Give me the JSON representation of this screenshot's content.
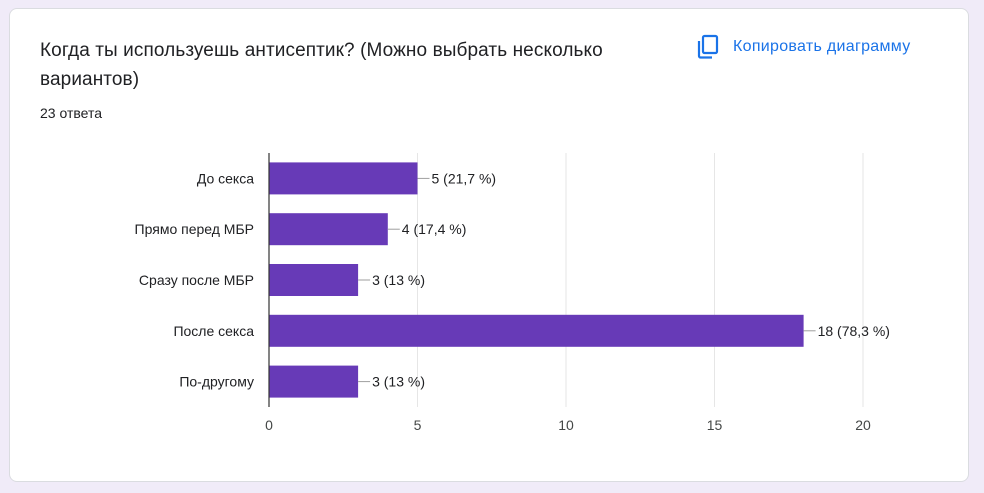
{
  "question": {
    "title": "Когда ты используешь антисептик? (Можно выбрать несколько вариантов)",
    "response_count": "23 ответа"
  },
  "actions": {
    "copy_label": "Копировать диаграмму",
    "copy_icon": "copy-icon"
  },
  "colors": {
    "bar": "#673ab7",
    "accent": "#1a73e8",
    "page_bg": "#f0ebf8"
  },
  "chart_data": {
    "type": "bar",
    "orientation": "horizontal",
    "categories": [
      "До секса",
      "Прямо перед МБР",
      "Сразу после МБР",
      "После секса",
      "По-другому"
    ],
    "values": [
      5,
      4,
      3,
      18,
      3
    ],
    "value_labels": [
      "5 (21,7 %)",
      "4 (17,4 %)",
      "3 (13 %)",
      "18 (78,3 %)",
      "3 (13 %)"
    ],
    "xlim": [
      0,
      20
    ],
    "xticks": [
      "0",
      "5",
      "10",
      "15",
      "20"
    ],
    "grid": true
  }
}
